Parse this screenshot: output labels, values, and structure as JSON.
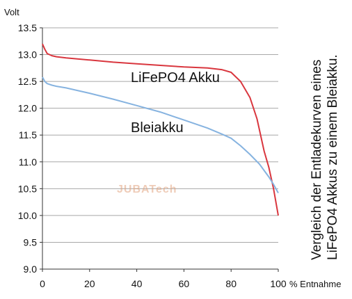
{
  "chart_data": {
    "type": "line",
    "ylabel": "Volt",
    "xlabel": "% Entnahme",
    "ylim": [
      9.0,
      13.5
    ],
    "xlim": [
      0,
      100
    ],
    "yticks": [
      "9.0",
      "9.5",
      "10.0",
      "10.5",
      "11.0",
      "11.5",
      "12.0",
      "12.5",
      "13.0",
      "13.5"
    ],
    "xticks": [
      "0",
      "20",
      "40",
      "60",
      "80",
      "100"
    ],
    "grid": "horizontal",
    "side_title_lines": [
      "Vergleich der Entladekurven eines",
      "LiFePO4 Akkus zu einem Bleiakku."
    ],
    "watermark": "JUBATech",
    "series": [
      {
        "name": "LiFePO4 Akku",
        "color": "#d9363e",
        "x": [
          0,
          1,
          2,
          4,
          6,
          10,
          20,
          30,
          40,
          50,
          60,
          70,
          76,
          80,
          84,
          88,
          91,
          94,
          96,
          98,
          100
        ],
        "y": [
          13.2,
          13.1,
          13.02,
          12.98,
          12.96,
          12.94,
          12.9,
          12.86,
          12.83,
          12.8,
          12.77,
          12.75,
          12.72,
          12.67,
          12.5,
          12.2,
          11.8,
          11.2,
          10.9,
          10.5,
          10.0
        ]
      },
      {
        "name": "Bleiakku",
        "color": "#86b3e0",
        "x": [
          0,
          1,
          2,
          4,
          6,
          10,
          20,
          30,
          40,
          50,
          60,
          70,
          76,
          80,
          84,
          88,
          92,
          96,
          98,
          100
        ],
        "y": [
          12.58,
          12.5,
          12.46,
          12.43,
          12.41,
          12.38,
          12.28,
          12.17,
          12.05,
          11.93,
          11.78,
          11.63,
          11.52,
          11.44,
          11.3,
          11.14,
          10.96,
          10.72,
          10.58,
          10.42
        ]
      }
    ]
  }
}
